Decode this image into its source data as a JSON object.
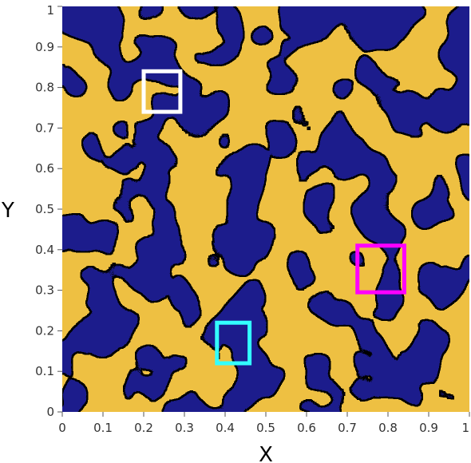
{
  "chart_data": {
    "type": "heatmap",
    "title": "",
    "xlabel": "X",
    "ylabel": "Y",
    "xlim": [
      0,
      1
    ],
    "ylim": [
      0,
      1
    ],
    "x_ticks": [
      "0",
      "0.1",
      "0.2",
      "0.3",
      "0.4",
      "0.5",
      "0.6",
      "0.7",
      "0.8",
      "0.9",
      "1"
    ],
    "y_ticks": [
      "0",
      "0.1",
      "0.2",
      "0.3",
      "0.4",
      "0.5",
      "0.6",
      "0.7",
      "0.8",
      "0.9",
      "1"
    ],
    "grid": false,
    "field": {
      "phase_colors": {
        "matrix": "#eec042",
        "inclusion": "#1e1b8c"
      },
      "contour_color": "#000000"
    },
    "regions": [
      {
        "id": "white-box",
        "color": "#ffffff",
        "x": [
          0.2,
          0.29
        ],
        "y": [
          0.74,
          0.84
        ]
      },
      {
        "id": "magenta-box",
        "color": "#ff00ff",
        "x": [
          0.725,
          0.84
        ],
        "y": [
          0.295,
          0.41
        ]
      },
      {
        "id": "cyan-box",
        "color": "#33ffff",
        "x": [
          0.38,
          0.46
        ],
        "y": [
          0.12,
          0.22
        ]
      }
    ]
  }
}
